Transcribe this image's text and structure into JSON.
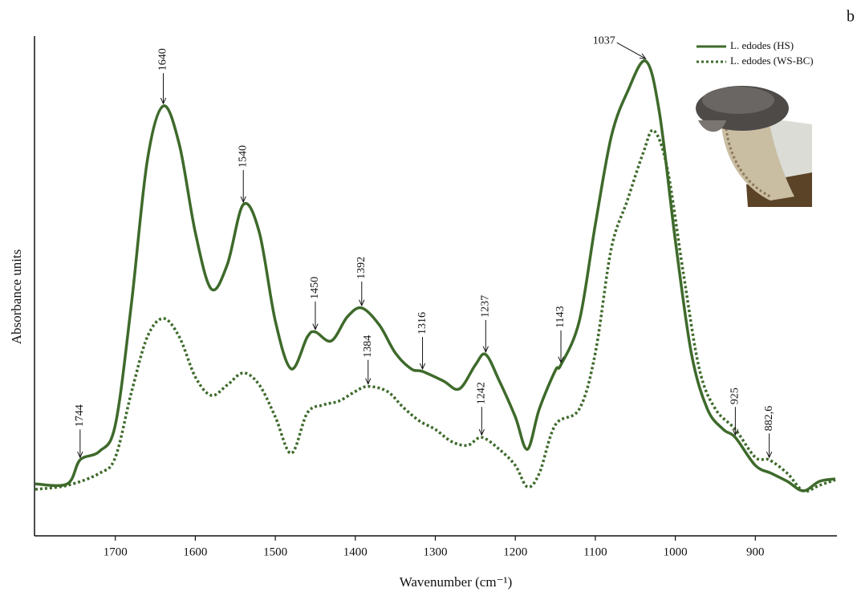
{
  "chart_data": {
    "type": "line",
    "panel_label": "b",
    "x_label": "Wavenumber (cm⁻¹)",
    "y_label": "Absorbance units",
    "xlim": [
      1801,
      798
    ],
    "ylim": [
      0,
      1
    ],
    "xticks": [
      1700,
      1600,
      1500,
      1400,
      1300,
      1200,
      1100,
      1000,
      900
    ],
    "legend": "upper right",
    "series": [
      {
        "name": "L. edodes (HS)",
        "color": "#3e6a2b",
        "style": "solid",
        "x": [
          1800,
          1760,
          1744,
          1720,
          1700,
          1680,
          1660,
          1640,
          1620,
          1600,
          1580,
          1560,
          1540,
          1520,
          1500,
          1480,
          1460,
          1450,
          1430,
          1410,
          1392,
          1370,
          1350,
          1330,
          1316,
          1290,
          1270,
          1250,
          1237,
          1220,
          1200,
          1185,
          1170,
          1150,
          1143,
          1120,
          1100,
          1080,
          1060,
          1037,
          1020,
          1000,
          980,
          960,
          940,
          925,
          900,
          880,
          860,
          840,
          820,
          800
        ],
        "values": [
          0.104,
          0.104,
          0.152,
          0.169,
          0.222,
          0.462,
          0.751,
          0.86,
          0.783,
          0.607,
          0.494,
          0.543,
          0.663,
          0.607,
          0.43,
          0.334,
          0.398,
          0.408,
          0.39,
          0.438,
          0.456,
          0.422,
          0.366,
          0.334,
          0.329,
          0.31,
          0.294,
          0.342,
          0.363,
          0.31,
          0.238,
          0.173,
          0.254,
          0.331,
          0.342,
          0.43,
          0.623,
          0.799,
          0.888,
          0.95,
          0.848,
          0.591,
          0.366,
          0.254,
          0.213,
          0.197,
          0.141,
          0.125,
          0.109,
          0.09,
          0.109,
          0.114
        ]
      },
      {
        "name": "L. edodes (WS-BC)",
        "color": "#3e6a2b",
        "style": "dotted",
        "x": [
          1800,
          1760,
          1720,
          1700,
          1680,
          1660,
          1640,
          1620,
          1600,
          1580,
          1560,
          1540,
          1520,
          1500,
          1480,
          1460,
          1440,
          1420,
          1400,
          1384,
          1360,
          1340,
          1320,
          1300,
          1280,
          1260,
          1242,
          1220,
          1200,
          1185,
          1170,
          1150,
          1120,
          1100,
          1080,
          1060,
          1040,
          1027,
          1010,
          990,
          970,
          950,
          925,
          900,
          882.6,
          860,
          840,
          820,
          800
        ],
        "values": [
          0.093,
          0.101,
          0.125,
          0.157,
          0.286,
          0.398,
          0.435,
          0.398,
          0.318,
          0.281,
          0.302,
          0.326,
          0.302,
          0.238,
          0.165,
          0.246,
          0.262,
          0.27,
          0.289,
          0.299,
          0.289,
          0.257,
          0.23,
          0.213,
          0.189,
          0.181,
          0.197,
          0.173,
          0.141,
          0.098,
          0.125,
          0.222,
          0.254,
          0.366,
          0.575,
          0.671,
          0.767,
          0.811,
          0.735,
          0.526,
          0.334,
          0.254,
          0.213,
          0.157,
          0.152,
          0.125,
          0.09,
          0.101,
          0.112
        ]
      }
    ],
    "annotations": [
      {
        "label": "1744",
        "x": 1744,
        "y": 0.152
      },
      {
        "label": "1640",
        "x": 1640,
        "y": 0.86
      },
      {
        "label": "1540",
        "x": 1540,
        "y": 0.663
      },
      {
        "label": "1450",
        "x": 1450,
        "y": 0.408
      },
      {
        "label": "1392",
        "x": 1392,
        "y": 0.456
      },
      {
        "label": "1384",
        "x": 1384,
        "y": 0.299
      },
      {
        "label": "1316",
        "x": 1316,
        "y": 0.329
      },
      {
        "label": "1237",
        "x": 1237,
        "y": 0.363
      },
      {
        "label": "1242",
        "x": 1242,
        "y": 0.197
      },
      {
        "label": "1143",
        "x": 1143,
        "y": 0.342
      },
      {
        "label": "1037",
        "x": 1037,
        "y": 0.95
      },
      {
        "label": "925",
        "x": 925,
        "y": 0.197
      },
      {
        "label": "882,6",
        "x": 882.6,
        "y": 0.152
      }
    ]
  }
}
